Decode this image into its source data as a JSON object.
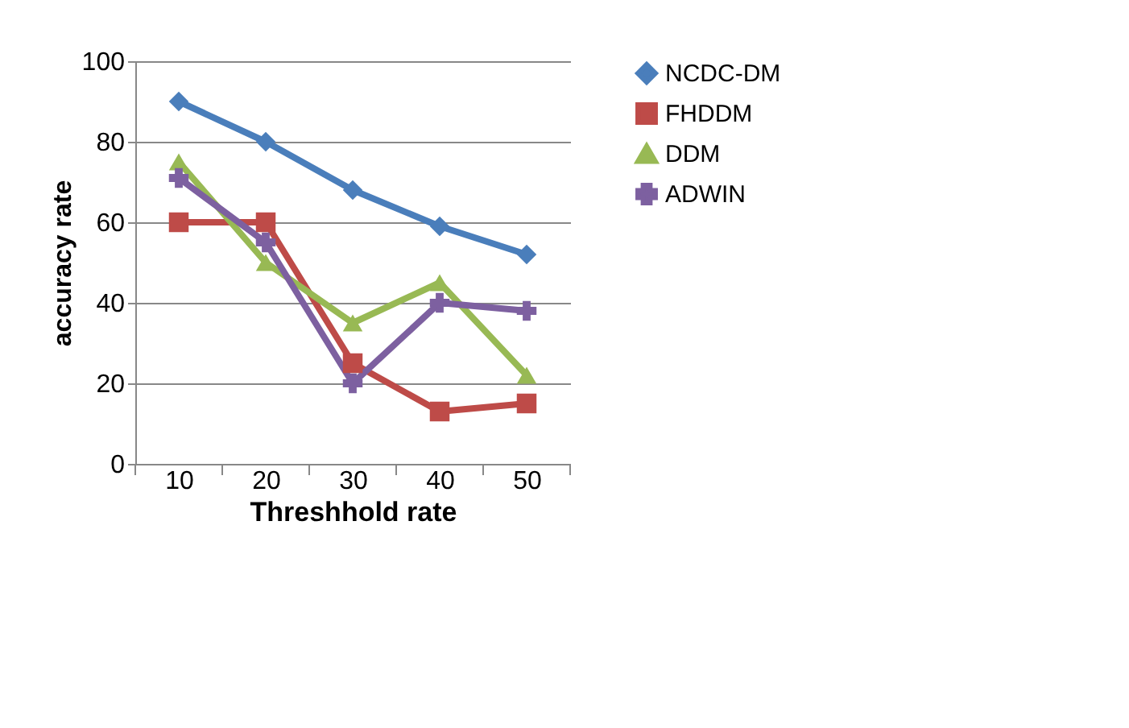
{
  "chart_data": {
    "type": "line",
    "xlabel": "Threshhold rate",
    "ylabel": "accuracy rate",
    "categories": [
      "10",
      "20",
      "30",
      "40",
      "50"
    ],
    "series": [
      {
        "name": "NCDC-DM",
        "color": "#4a7ebb",
        "marker": "diamond",
        "values": [
          90,
          80,
          68,
          59,
          52
        ]
      },
      {
        "name": "FHDDM",
        "color": "#be4b48",
        "marker": "square",
        "values": [
          60,
          60,
          25,
          13,
          15
        ]
      },
      {
        "name": "DDM",
        "color": "#98b954",
        "marker": "triangle",
        "values": [
          75,
          50,
          35,
          45,
          22
        ]
      },
      {
        "name": "ADWIN",
        "color": "#7d60a0",
        "marker": "cross",
        "values": [
          71,
          55,
          20,
          40,
          38
        ]
      }
    ],
    "ylim": [
      0,
      100
    ],
    "yticks": [
      0,
      20,
      40,
      60,
      80,
      100
    ],
    "grid": "y",
    "legend": "right",
    "line_style": "solid"
  }
}
